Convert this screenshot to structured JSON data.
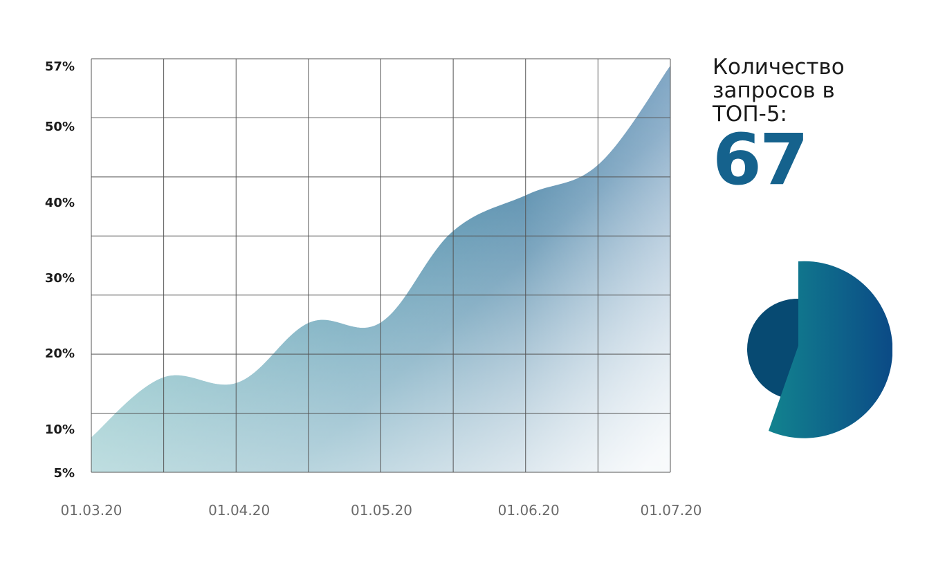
{
  "chart_data": {
    "type": "area",
    "title": "",
    "xlabel": "",
    "ylabel": "",
    "y_ticks": [
      "57%",
      "50%",
      "40%",
      "30%",
      "20%",
      "10%",
      "5%"
    ],
    "x_ticks": [
      "01.03.20",
      "01.04.20",
      "01.05.20",
      "01.06.20",
      "01.07.20"
    ],
    "ylim": [
      5,
      57
    ],
    "grid": true,
    "series": [
      {
        "x": [
          "01.03.20",
          "16.03.20",
          "01.04.20",
          "16.04.20",
          "01.05.20",
          "16.05.20",
          "01.06.20",
          "16.06.20",
          "01.07.20"
        ],
        "y": [
          9,
          16.7,
          16.1,
          24,
          24,
          36,
          41,
          45,
          57
        ]
      }
    ],
    "colors": {
      "area_dark": "#145f8c",
      "area_teal": "#5aaab0",
      "area_light": "#e3ebf2",
      "grid": "#555555"
    }
  },
  "kpi": {
    "label": "Количество запросов в ТОП-5:",
    "value": "67"
  },
  "logo": {
    "colors": [
      "#074a72",
      "#12838f",
      "#0b4a86"
    ]
  }
}
